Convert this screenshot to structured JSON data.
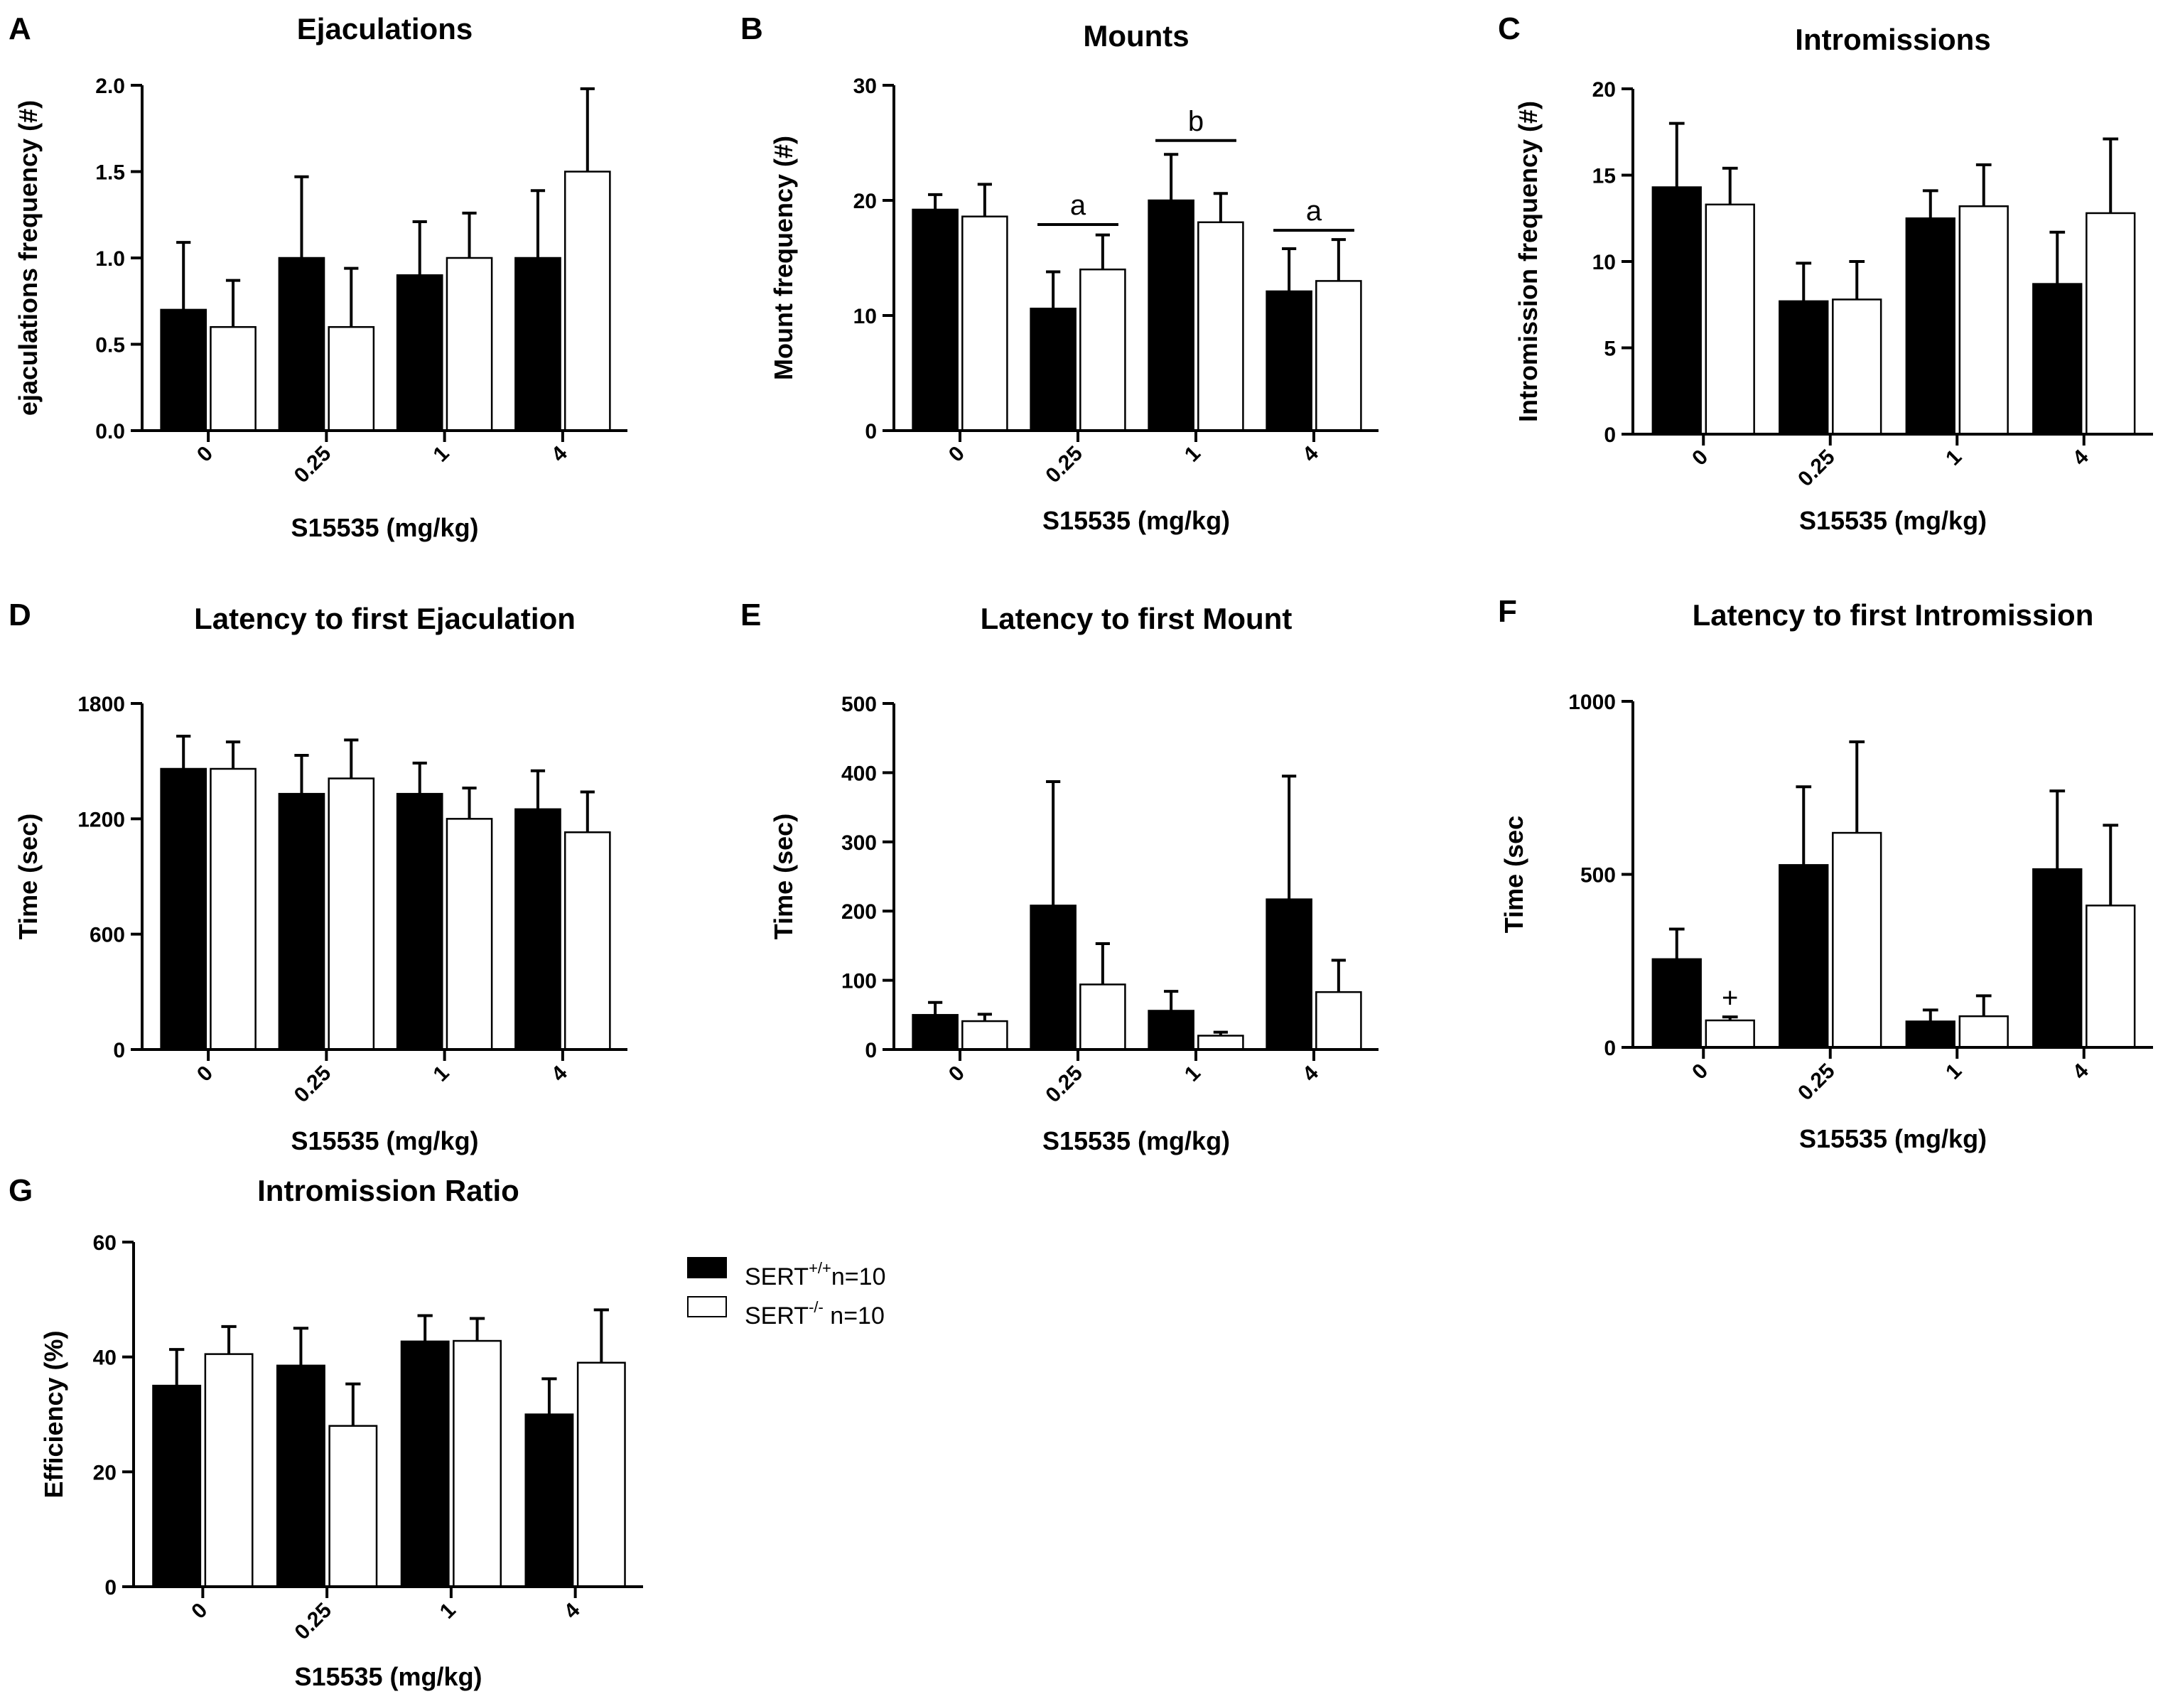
{
  "legend": {
    "wt": {
      "base": "SERT",
      "sup": "+/+",
      "rest": "n=10",
      "color": "#000000"
    },
    "ko": {
      "base": "SERT",
      "sup": "-/-",
      "rest": " n=10",
      "color": "#ffffff"
    }
  },
  "chart_data": [
    {
      "panel": "A",
      "type": "bar",
      "title": "Ejaculations",
      "xlabel": "S15535 (mg/kg)",
      "ylabel": "ejaculations frequency (#)",
      "categories": [
        "0",
        "0.25",
        "1",
        "4"
      ],
      "ylim": [
        0,
        2.0
      ],
      "yticks": [
        "0.0",
        "0.5",
        "1.0",
        "1.5",
        "2.0"
      ],
      "series": [
        {
          "name": "SERT+/+ n=10",
          "values": [
            0.7,
            1.0,
            0.9,
            1.0
          ],
          "errors": [
            0.39,
            0.47,
            0.31,
            0.39
          ]
        },
        {
          "name": "SERT-/- n=10",
          "values": [
            0.6,
            0.6,
            1.0,
            1.5
          ],
          "errors": [
            0.27,
            0.34,
            0.26,
            0.48
          ]
        }
      ],
      "annotations": []
    },
    {
      "panel": "B",
      "type": "bar",
      "title": "Mounts",
      "xlabel": "S15535 (mg/kg)",
      "ylabel": "Mount frequency (#)",
      "categories": [
        "0",
        "0.25",
        "1",
        "4"
      ],
      "ylim": [
        0,
        30
      ],
      "yticks": [
        "0",
        "10",
        "20",
        "30"
      ],
      "series": [
        {
          "name": "SERT+/+ n=10",
          "values": [
            19.2,
            10.6,
            20.0,
            12.1
          ],
          "errors": [
            1.3,
            3.2,
            4.0,
            3.7
          ]
        },
        {
          "name": "SERT-/- n=10",
          "values": [
            18.6,
            14.0,
            18.1,
            13.0
          ],
          "errors": [
            2.8,
            3.0,
            2.5,
            3.6
          ]
        }
      ],
      "annotations": [
        {
          "text": "a",
          "category": 1,
          "y": 17.9
        },
        {
          "text": "b",
          "category": 2,
          "y": 25.2
        },
        {
          "text": "a",
          "category": 3,
          "y": 17.4
        }
      ]
    },
    {
      "panel": "C",
      "type": "bar",
      "title": "Intromissions",
      "xlabel": "S15535 (mg/kg)",
      "ylabel": "Intromission frequency (#)",
      "categories": [
        "0",
        "0.25",
        "1",
        "4"
      ],
      "ylim": [
        0,
        20
      ],
      "yticks": [
        "0",
        "5",
        "10",
        "15",
        "20"
      ],
      "series": [
        {
          "name": "SERT+/+ n=10",
          "values": [
            14.3,
            7.7,
            12.5,
            8.7
          ],
          "errors": [
            3.7,
            2.2,
            1.6,
            3.0
          ]
        },
        {
          "name": "SERT-/- n=10",
          "values": [
            13.3,
            7.8,
            13.2,
            12.8
          ],
          "errors": [
            2.1,
            2.2,
            2.4,
            4.3
          ]
        }
      ],
      "annotations": []
    },
    {
      "panel": "D",
      "type": "bar",
      "title": "Latency to first Ejaculation",
      "xlabel": "S15535 (mg/kg)",
      "ylabel": "Time (sec)",
      "categories": [
        "0",
        "0.25",
        "1",
        "4"
      ],
      "ylim": [
        0,
        1800
      ],
      "yticks": [
        "0",
        "600",
        "1200",
        "1800"
      ],
      "series": [
        {
          "name": "SERT+/+ n=10",
          "values": [
            1460,
            1330,
            1330,
            1250
          ],
          "errors": [
            170,
            200,
            160,
            200
          ]
        },
        {
          "name": "SERT-/- n=10",
          "values": [
            1460,
            1410,
            1200,
            1130
          ],
          "errors": [
            140,
            200,
            160,
            210
          ]
        }
      ],
      "annotations": []
    },
    {
      "panel": "E",
      "type": "bar",
      "title": "Latency to first Mount",
      "xlabel": "S15535 (mg/kg)",
      "ylabel": "Time (sec)",
      "categories": [
        "0",
        "0.25",
        "1",
        "4"
      ],
      "ylim": [
        0,
        500
      ],
      "yticks": [
        "0",
        "100",
        "200",
        "300",
        "400",
        "500"
      ],
      "series": [
        {
          "name": "SERT+/+ n=10",
          "values": [
            50,
            208,
            56,
            217
          ],
          "errors": [
            18,
            179,
            28,
            178
          ]
        },
        {
          "name": "SERT-/- n=10",
          "values": [
            41,
            94,
            20,
            83
          ],
          "errors": [
            10,
            59,
            5,
            46
          ]
        }
      ],
      "annotations": []
    },
    {
      "panel": "F",
      "type": "bar",
      "title": "Latency to first Intromission",
      "xlabel": "S15535 (mg/kg)",
      "ylabel": "Time (sec",
      "categories": [
        "0",
        "0.25",
        "1",
        "4"
      ],
      "ylim": [
        0,
        1000
      ],
      "yticks": [
        "0",
        "500",
        "1000"
      ],
      "series": [
        {
          "name": "SERT+/+ n=10",
          "values": [
            255,
            527,
            75,
            515
          ],
          "errors": [
            87,
            226,
            33,
            226
          ]
        },
        {
          "name": "SERT-/- n=10",
          "values": [
            78,
            620,
            90,
            410
          ],
          "errors": [
            10,
            263,
            59,
            232
          ]
        }
      ],
      "annotations": [
        {
          "text": "+",
          "category": 0,
          "series": 1,
          "y": 116
        }
      ]
    },
    {
      "panel": "G",
      "type": "bar",
      "title": "Intromission Ratio",
      "xlabel": "S15535 (mg/kg)",
      "ylabel": "Efficiency (%)",
      "categories": [
        "0",
        "0.25",
        "1",
        "4"
      ],
      "ylim": [
        0,
        60
      ],
      "yticks": [
        "0",
        "20",
        "40",
        "60"
      ],
      "series": [
        {
          "name": "SERT+/+ n=10",
          "values": [
            35.0,
            38.5,
            42.7,
            30.0
          ],
          "errors": [
            6.3,
            6.5,
            4.5,
            6.2
          ]
        },
        {
          "name": "SERT-/- n=10",
          "values": [
            40.5,
            28.0,
            42.8,
            39.0
          ],
          "errors": [
            4.8,
            7.3,
            3.9,
            9.2
          ]
        }
      ],
      "annotations": []
    }
  ]
}
